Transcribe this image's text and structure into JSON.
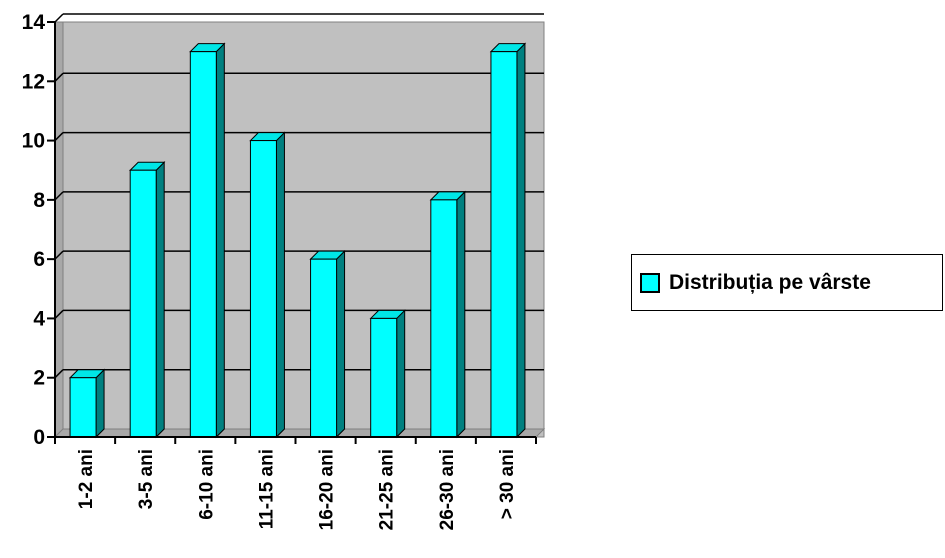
{
  "chart_data": {
    "type": "bar",
    "categories": [
      "1-2 ani",
      "3-5 ani",
      "6-10 ani",
      "11-15 ani",
      "16-20 ani",
      "21-25 ani",
      "26-30 ani",
      "> 30 ani"
    ],
    "series": [
      {
        "name": "Distribuția pe vârste",
        "values": [
          2,
          9,
          13,
          10,
          6,
          4,
          8,
          13
        ]
      }
    ],
    "ylim": [
      0,
      14
    ],
    "yticks": [
      "0",
      "2",
      "4",
      "6",
      "8",
      "10",
      "12",
      "14"
    ],
    "title": "",
    "xlabel": "",
    "ylabel": "",
    "grid": true,
    "legend_position": "right",
    "style": "3d-column"
  },
  "colors": {
    "bar_front": "#00ffff",
    "bar_top": "#00e6e6",
    "bar_side": "#008080",
    "plot_background": "#c0c0c0",
    "plot_wall": "#a8a8a8",
    "gridline": "#000000"
  }
}
